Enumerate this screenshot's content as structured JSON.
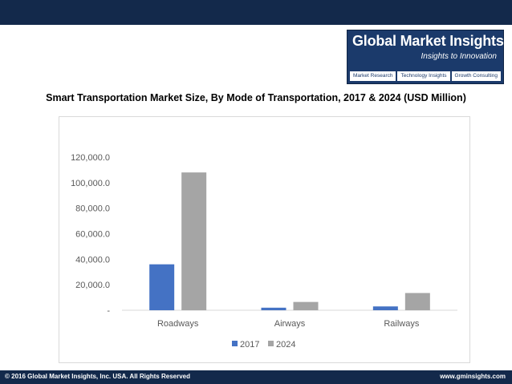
{
  "logo": {
    "name": "Global Market Insights",
    "tagline": "Insights to Innovation",
    "tabs": [
      "Market Research",
      "Technology Insights",
      "Growth Consulting"
    ]
  },
  "footer": {
    "copyright": "© 2016 Global Market Insights, Inc. USA. All Rights Reserved",
    "website": "www.gminsights.com"
  },
  "colors": {
    "header": "#13294b",
    "series_2017": "#4472c4",
    "series_2024": "#a5a5a5"
  },
  "chart_data": {
    "type": "bar",
    "title": "Smart Transportation Market Size, By Mode of Transportation, 2017 & 2024 (USD Million)",
    "categories": [
      "Roadways",
      "Airways",
      "Railways"
    ],
    "series": [
      {
        "name": "2017",
        "values": [
          36000,
          2000,
          3000
        ]
      },
      {
        "name": "2024",
        "values": [
          108000,
          6500,
          13500
        ]
      }
    ],
    "yticks": [
      "-",
      "20,000.0",
      "40,000.0",
      "60,000.0",
      "80,000.0",
      "100,000.0",
      "120,000.0"
    ],
    "ylim": [
      0,
      120000
    ],
    "grid": false,
    "legend": "bottom"
  }
}
